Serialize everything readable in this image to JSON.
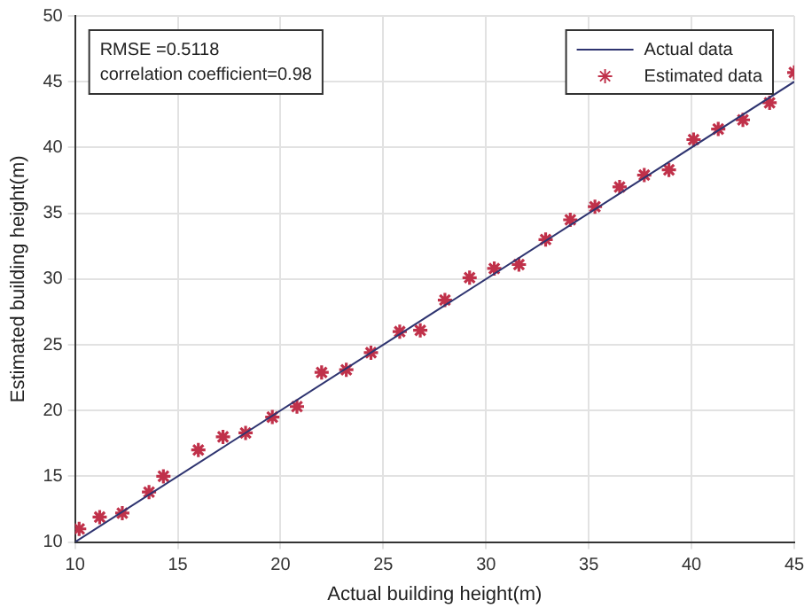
{
  "chart_data": {
    "type": "scatter",
    "xlabel": "Actual building height(m)",
    "ylabel": "Estimated building height(m)",
    "annotations": [
      "RMSE =0.5118",
      "correlation coefficient=0.98"
    ],
    "xlim": [
      10,
      45
    ],
    "xticks": [
      10,
      15,
      20,
      25,
      30,
      35,
      40,
      45
    ],
    "ylim": [
      10,
      50
    ],
    "yticks": [
      10,
      15,
      20,
      25,
      30,
      35,
      40,
      45,
      50
    ],
    "grid": true,
    "legend": "top right",
    "series": [
      {
        "name": "Actual data",
        "type": "line",
        "color": "#2e3470",
        "marker": "none",
        "line_style": "solid",
        "x": [
          10,
          45
        ],
        "values": [
          10,
          45
        ]
      },
      {
        "name": "Estimated data",
        "type": "scatter",
        "color": "#c0314a",
        "marker": "cross",
        "x": [
          10.2,
          11.2,
          12.3,
          13.6,
          14.3,
          16.0,
          17.2,
          18.3,
          19.6,
          20.8,
          22.0,
          23.2,
          24.4,
          25.8,
          26.8,
          28.0,
          29.2,
          30.4,
          31.6,
          32.9,
          34.1,
          35.3,
          36.5,
          37.7,
          38.9,
          40.1,
          41.3,
          42.5,
          43.8,
          45.0
        ],
        "values": [
          11.0,
          11.9,
          12.2,
          13.8,
          15.0,
          17.0,
          18.0,
          18.3,
          19.5,
          20.3,
          22.9,
          23.1,
          24.4,
          26.0,
          26.1,
          28.4,
          30.1,
          30.8,
          31.1,
          33.0,
          34.5,
          35.5,
          37.0,
          37.9,
          38.3,
          40.6,
          41.4,
          42.1,
          43.4,
          45.7
        ]
      }
    ]
  }
}
